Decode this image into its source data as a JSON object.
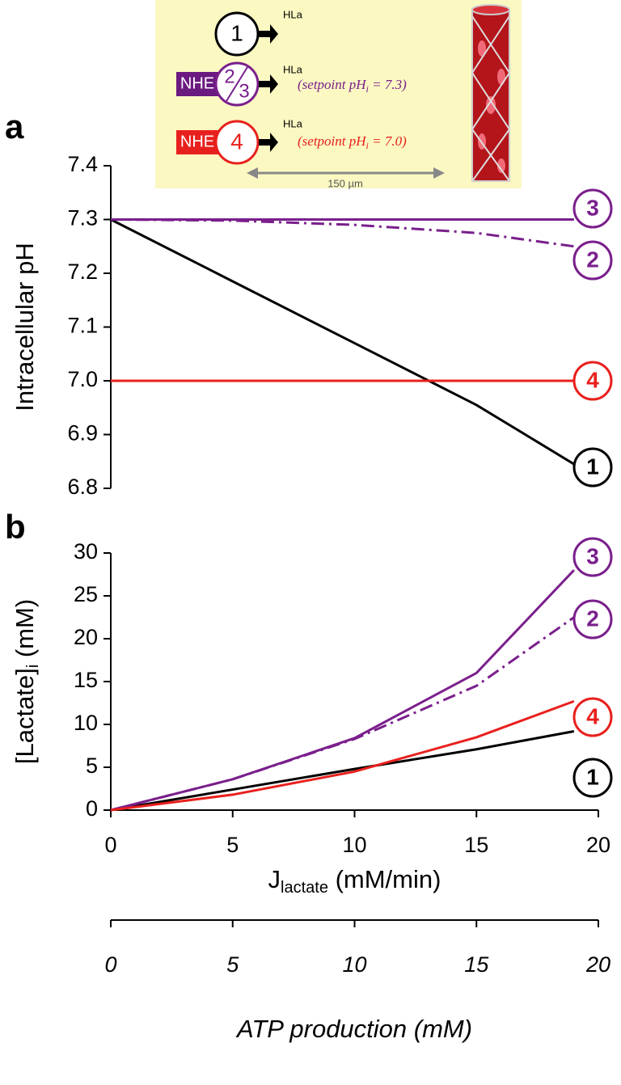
{
  "panel_labels": [
    "a",
    "b"
  ],
  "inset": {
    "cell1": "1",
    "hla": [
      "HLa",
      "HLa",
      "HLa"
    ],
    "nhe": [
      "NHE",
      "NHE"
    ],
    "cell2": "2",
    "cell3": "3",
    "cell4": "4",
    "setpoint1": [
      "(setpoint pH",
      "i",
      " = 7.3)"
    ],
    "setpoint2": [
      "(setpoint pH",
      "i",
      " = 7.0)"
    ],
    "scale": "150 µm"
  },
  "chart_data": [
    {
      "type": "line",
      "ylabel": "Intracellular pH",
      "x": [
        0,
        5,
        10,
        15,
        19
      ],
      "xlim": [
        0,
        20
      ],
      "ylim": [
        6.8,
        7.4
      ],
      "yticks": [
        6.8,
        6.9,
        {
          "value": 7,
          "label": "7.0"
        },
        7.1,
        7.2,
        7.3,
        7.4
      ],
      "series": [
        {
          "name": "1",
          "color": "#000000",
          "dash": "solid",
          "values": [
            7.3,
            7.185,
            7.07,
            6.955,
            6.845
          ]
        },
        {
          "name": "2",
          "color": "#7a1f8c",
          "dash": "dashdot",
          "values": [
            7.3,
            7.298,
            7.29,
            7.275,
            7.25
          ]
        },
        {
          "name": "3",
          "color": "#7a1f8c",
          "dash": "solid",
          "values": [
            7.3,
            7.3,
            7.3,
            7.3,
            7.3
          ]
        },
        {
          "name": "4",
          "color": "#e8201d",
          "dash": "solid",
          "values": [
            7,
            7,
            7,
            7,
            7
          ]
        }
      ]
    },
    {
      "type": "line",
      "ylabel": [
        "[Lactate]",
        "i",
        " (mM)"
      ],
      "xlabel": [
        "J",
        "lactate",
        " (mM/min)"
      ],
      "x": [
        0,
        5,
        10,
        15,
        19
      ],
      "xlim": [
        0,
        20
      ],
      "xticks": [
        0,
        5,
        10,
        15,
        20
      ],
      "ylim": [
        0,
        30
      ],
      "yticks": [
        0,
        5,
        10,
        15,
        20,
        25,
        30
      ],
      "x2label": "ATP production (mM)",
      "x2lim": [
        0,
        20
      ],
      "x2ticks": [
        0,
        5,
        10,
        15,
        20
      ],
      "series": [
        {
          "name": "1",
          "color": "#000000",
          "dash": "solid",
          "values": [
            0,
            2.4,
            4.8,
            7.1,
            9.2
          ]
        },
        {
          "name": "2",
          "color": "#7a1f8c",
          "dash": "dashdot",
          "values": [
            0,
            3.6,
            8.3,
            14.5,
            22.5
          ]
        },
        {
          "name": "3",
          "color": "#7a1f8c",
          "dash": "solid",
          "values": [
            0,
            3.6,
            8.4,
            16,
            28
          ]
        },
        {
          "name": "4",
          "color": "#e8201d",
          "dash": "solid",
          "values": [
            0,
            1.8,
            4.5,
            8.5,
            12.7
          ]
        }
      ]
    }
  ]
}
